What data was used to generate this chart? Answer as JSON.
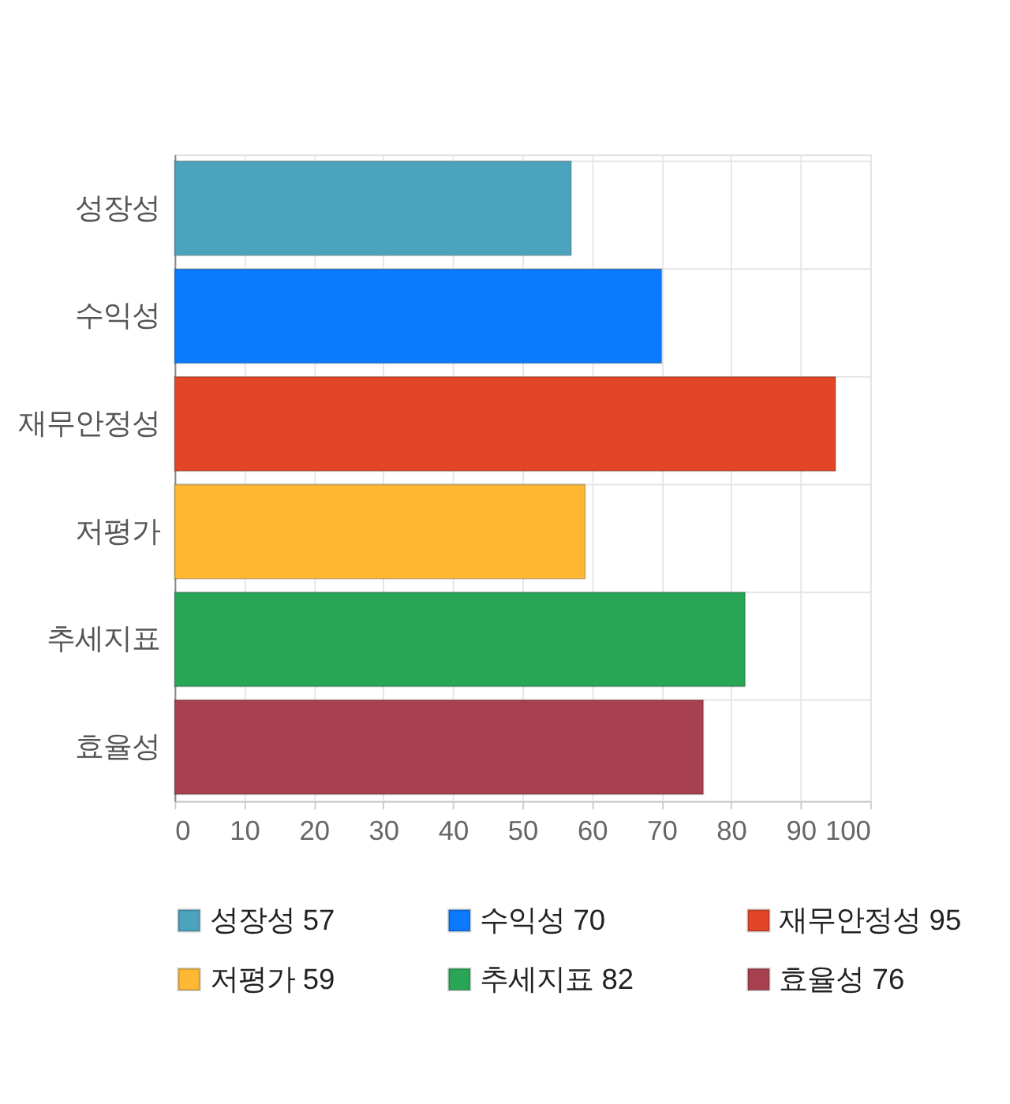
{
  "chart_data": {
    "type": "bar",
    "orientation": "horizontal",
    "categories": [
      "성장성",
      "수익성",
      "재무안정성",
      "저평가",
      "추세지표",
      "효율성"
    ],
    "series": [
      {
        "name": "성장성 57",
        "color": "#4ba3bd",
        "values": [
          57,
          null,
          null,
          null,
          null,
          null
        ]
      },
      {
        "name": "수익성 70",
        "color": "#0a7aff",
        "values": [
          null,
          70,
          null,
          null,
          null,
          null
        ]
      },
      {
        "name": "재무안정성 95",
        "color": "#e24626",
        "values": [
          null,
          null,
          95,
          null,
          null,
          null
        ]
      },
      {
        "name": "저평가 59",
        "color": "#ffb833",
        "values": [
          null,
          null,
          null,
          59,
          null,
          null
        ]
      },
      {
        "name": "추세지표 82",
        "color": "#29a655",
        "values": [
          null,
          null,
          null,
          null,
          82,
          null
        ]
      },
      {
        "name": "효율성 76",
        "color": "#a8414f",
        "values": [
          null,
          null,
          null,
          null,
          null,
          76
        ]
      }
    ],
    "xlim": [
      0,
      100
    ],
    "xticks": [
      0,
      10,
      20,
      30,
      40,
      50,
      60,
      70,
      80,
      90,
      100
    ],
    "grid": true,
    "legend": "bottom"
  }
}
